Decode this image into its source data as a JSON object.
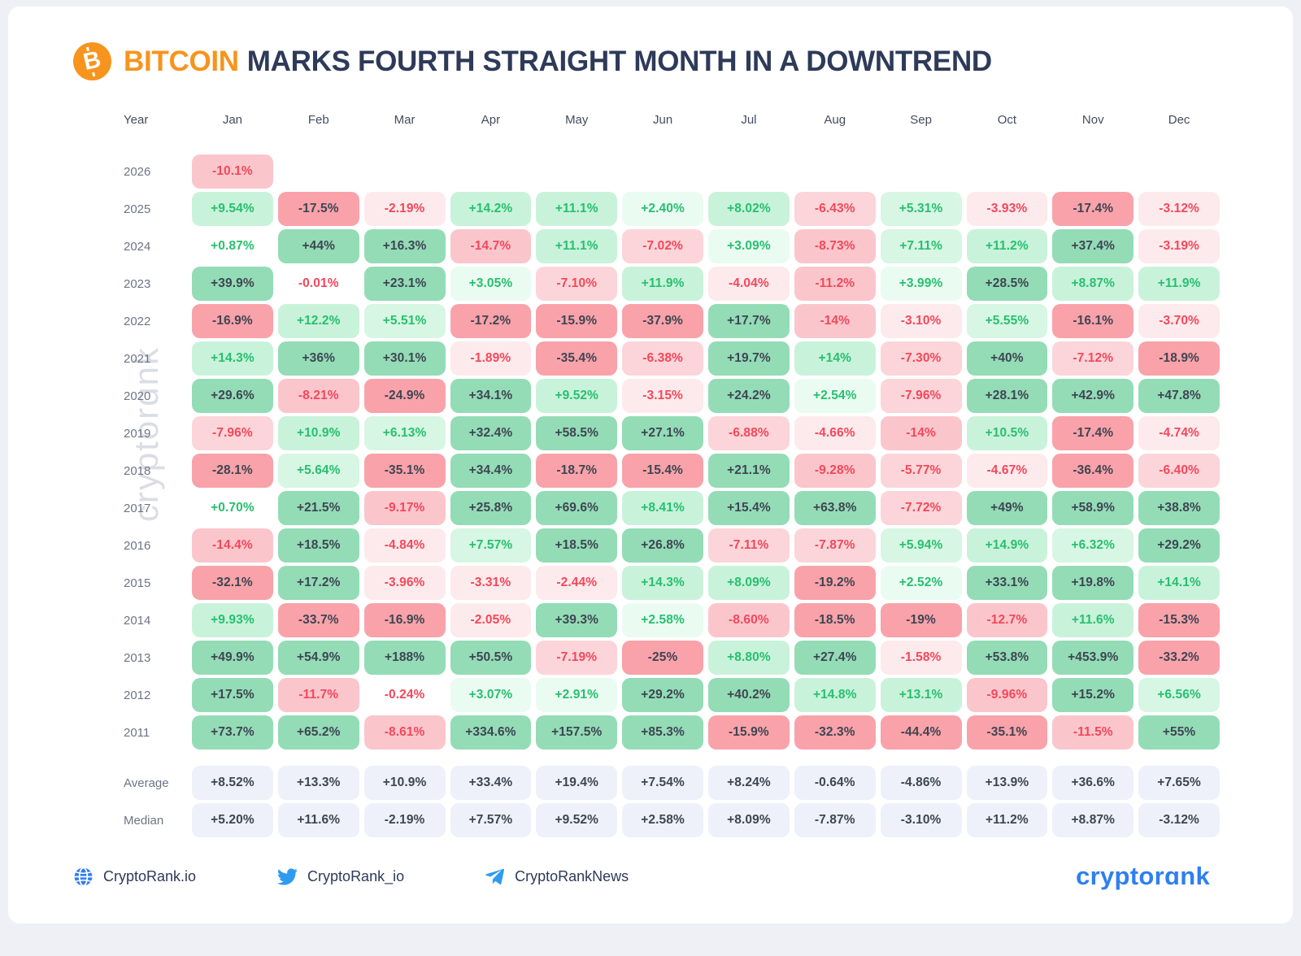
{
  "title": {
    "highlight": "BITCOIN",
    "rest": "MARKS FOURTH STRAIGHT MONTH IN A DOWNTREND"
  },
  "watermark": "cryptorɑnk",
  "chart_data": {
    "type": "heatmap",
    "title": "Bitcoin monthly returns by year (%)",
    "row_header": "Year",
    "columns": [
      "Jan",
      "Feb",
      "Mar",
      "Apr",
      "May",
      "Jun",
      "Jul",
      "Aug",
      "Sep",
      "Oct",
      "Nov",
      "Dec"
    ],
    "rows": [
      {
        "label": "2026",
        "values": [
          "-10.1%",
          null,
          null,
          null,
          null,
          null,
          null,
          null,
          null,
          null,
          null,
          null
        ]
      },
      {
        "label": "2025",
        "values": [
          "+9.54%",
          "-17.5%",
          "-2.19%",
          "+14.2%",
          "+11.1%",
          "+2.40%",
          "+8.02%",
          "-6.43%",
          "+5.31%",
          "-3.93%",
          "-17.4%",
          "-3.12%"
        ]
      },
      {
        "label": "2024",
        "values": [
          "+0.87%",
          "+44%",
          "+16.3%",
          "-14.7%",
          "+11.1%",
          "-7.02%",
          "+3.09%",
          "-8.73%",
          "+7.11%",
          "+11.2%",
          "+37.4%",
          "-3.19%"
        ]
      },
      {
        "label": "2023",
        "values": [
          "+39.9%",
          "-0.01%",
          "+23.1%",
          "+3.05%",
          "-7.10%",
          "+11.9%",
          "-4.04%",
          "-11.2%",
          "+3.99%",
          "+28.5%",
          "+8.87%",
          "+11.9%"
        ]
      },
      {
        "label": "2022",
        "values": [
          "-16.9%",
          "+12.2%",
          "+5.51%",
          "-17.2%",
          "-15.9%",
          "-37.9%",
          "+17.7%",
          "-14%",
          "-3.10%",
          "+5.55%",
          "-16.1%",
          "-3.70%"
        ]
      },
      {
        "label": "2021",
        "values": [
          "+14.3%",
          "+36%",
          "+30.1%",
          "-1.89%",
          "-35.4%",
          "-6.38%",
          "+19.7%",
          "+14%",
          "-7.30%",
          "+40%",
          "-7.12%",
          "-18.9%"
        ]
      },
      {
        "label": "2020",
        "values": [
          "+29.6%",
          "-8.21%",
          "-24.9%",
          "+34.1%",
          "+9.52%",
          "-3.15%",
          "+24.2%",
          "+2.54%",
          "-7.96%",
          "+28.1%",
          "+42.9%",
          "+47.8%"
        ]
      },
      {
        "label": "2019",
        "values": [
          "-7.96%",
          "+10.9%",
          "+6.13%",
          "+32.4%",
          "+58.5%",
          "+27.1%",
          "-6.88%",
          "-4.66%",
          "-14%",
          "+10.5%",
          "-17.4%",
          "-4.74%"
        ]
      },
      {
        "label": "2018",
        "values": [
          "-28.1%",
          "+5.64%",
          "-35.1%",
          "+34.4%",
          "-18.7%",
          "-15.4%",
          "+21.1%",
          "-9.28%",
          "-5.77%",
          "-4.67%",
          "-36.4%",
          "-6.40%"
        ]
      },
      {
        "label": "2017",
        "values": [
          "+0.70%",
          "+21.5%",
          "-9.17%",
          "+25.8%",
          "+69.6%",
          "+8.41%",
          "+15.4%",
          "+63.8%",
          "-7.72%",
          "+49%",
          "+58.9%",
          "+38.8%"
        ]
      },
      {
        "label": "2016",
        "values": [
          "-14.4%",
          "+18.5%",
          "-4.84%",
          "+7.57%",
          "+18.5%",
          "+26.8%",
          "-7.11%",
          "-7.87%",
          "+5.94%",
          "+14.9%",
          "+6.32%",
          "+29.2%"
        ]
      },
      {
        "label": "2015",
        "values": [
          "-32.1%",
          "+17.2%",
          "-3.96%",
          "-3.31%",
          "-2.44%",
          "+14.3%",
          "+8.09%",
          "-19.2%",
          "+2.52%",
          "+33.1%",
          "+19.8%",
          "+14.1%"
        ]
      },
      {
        "label": "2014",
        "values": [
          "+9.93%",
          "-33.7%",
          "-16.9%",
          "-2.05%",
          "+39.3%",
          "+2.58%",
          "-8.60%",
          "-18.5%",
          "-19%",
          "-12.7%",
          "+11.6%",
          "-15.3%"
        ]
      },
      {
        "label": "2013",
        "values": [
          "+49.9%",
          "+54.9%",
          "+188%",
          "+50.5%",
          "-7.19%",
          "-25%",
          "+8.80%",
          "+27.4%",
          "-1.58%",
          "+53.8%",
          "+453.9%",
          "-33.2%"
        ]
      },
      {
        "label": "2012",
        "values": [
          "+17.5%",
          "-11.7%",
          "-0.24%",
          "+3.07%",
          "+2.91%",
          "+29.2%",
          "+40.2%",
          "+14.8%",
          "+13.1%",
          "-9.96%",
          "+15.2%",
          "+6.56%"
        ]
      },
      {
        "label": "2011",
        "values": [
          "+73.7%",
          "+65.2%",
          "-8.61%",
          "+334.6%",
          "+157.5%",
          "+85.3%",
          "-15.9%",
          "-32.3%",
          "-44.4%",
          "-35.1%",
          "-11.5%",
          "+55%"
        ]
      }
    ],
    "summary_rows": [
      {
        "label": "Average",
        "values": [
          "+8.52%",
          "+13.3%",
          "+10.9%",
          "+33.4%",
          "+19.4%",
          "+7.54%",
          "+8.24%",
          "-0.64%",
          "-4.86%",
          "+13.9%",
          "+36.6%",
          "+7.65%"
        ]
      },
      {
        "label": "Median",
        "values": [
          "+5.20%",
          "+11.6%",
          "-2.19%",
          "+7.57%",
          "+9.52%",
          "+2.58%",
          "+8.09%",
          "-7.87%",
          "-3.10%",
          "+11.2%",
          "+8.87%",
          "-3.12%"
        ]
      }
    ],
    "legend_position": "none",
    "grid": false
  },
  "footer": {
    "links": [
      {
        "icon": "globe-icon",
        "label": "CryptoRank.io"
      },
      {
        "icon": "twitter-icon",
        "label": "CryptoRank_io"
      },
      {
        "icon": "telegram-icon",
        "label": "CryptoRankNews"
      }
    ],
    "logo": "cryptorɑnk"
  },
  "colors": {
    "page_bg": "#eef0f5",
    "accent_orange": "#f7941d",
    "title_navy": "#2e3a59",
    "green_strong": "#93dcb6",
    "green_med": "#c9f2db",
    "green_light": "#d7f6e4",
    "green_faint": "#eafbf2",
    "red_strong": "#f9a2a9",
    "red_med": "#fac6cc",
    "red_light": "#fbd5d9",
    "red_faint": "#fdeaec",
    "green_text": "#27c06e",
    "red_text": "#f4475a",
    "dark_text": "#3e4553",
    "summary_bg": "#eef1f9",
    "label_gray": "#6d7484",
    "watermark_gray": "#dadde4",
    "footer_icon_blue": "#2f9bef",
    "globe_blue": "#2f7df2",
    "logo_blue": "#2e7ff1"
  }
}
